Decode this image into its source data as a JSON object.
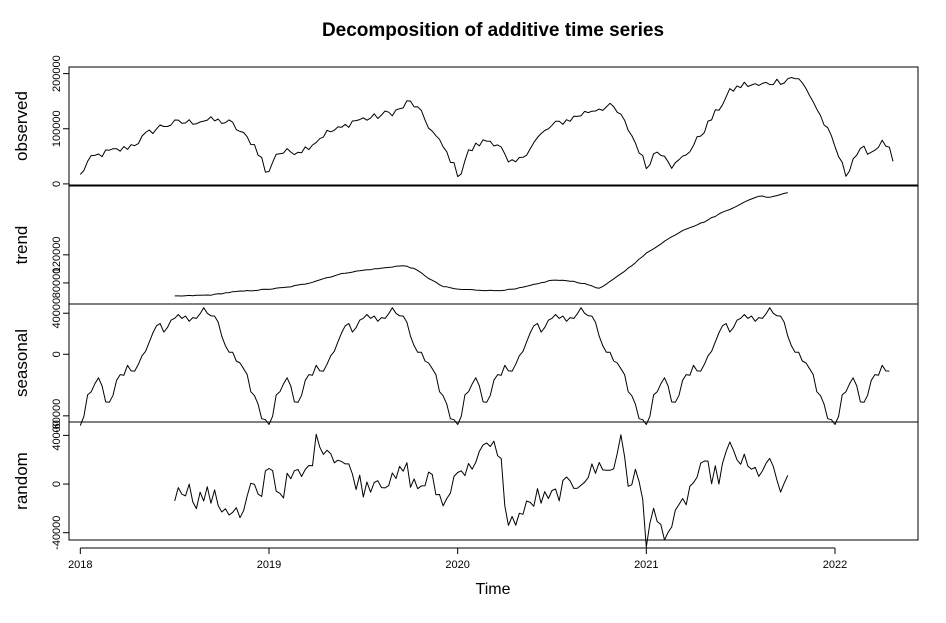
{
  "chart_data": {
    "type": "line",
    "title": "Decomposition of additive time series",
    "xlabel": "Time",
    "xlim": [
      2017.94,
      2022.44
    ],
    "x_ticks": [
      {
        "value": 2018,
        "label": "2018"
      },
      {
        "value": 2019,
        "label": "2019"
      },
      {
        "value": 2020,
        "label": "2020"
      },
      {
        "value": 2021,
        "label": "2021"
      },
      {
        "value": 2022,
        "label": "2022"
      }
    ],
    "panels": [
      {
        "ylabel": "observed",
        "ylim": [
          -2000,
          212000
        ],
        "y_ticks": [
          {
            "value": 0,
            "label": "0"
          },
          {
            "value": 100000,
            "label": "100000"
          },
          {
            "value": 200000,
            "label": "200000"
          }
        ],
        "anchors": [
          [
            2018.0,
            15000
          ],
          [
            2018.04,
            40000
          ],
          [
            2018.08,
            50000
          ],
          [
            2018.15,
            58000
          ],
          [
            2018.22,
            62000
          ],
          [
            2018.3,
            75000
          ],
          [
            2018.36,
            92000
          ],
          [
            2018.43,
            105000
          ],
          [
            2018.5,
            110000
          ],
          [
            2018.58,
            112000
          ],
          [
            2018.66,
            116000
          ],
          [
            2018.74,
            114000
          ],
          [
            2018.8,
            110000
          ],
          [
            2018.86,
            90000
          ],
          [
            2018.92,
            72000
          ],
          [
            2018.97,
            40000
          ],
          [
            2018.99,
            8000
          ],
          [
            2019.03,
            55000
          ],
          [
            2019.1,
            58000
          ],
          [
            2019.18,
            62000
          ],
          [
            2019.25,
            78000
          ],
          [
            2019.3,
            92000
          ],
          [
            2019.38,
            100000
          ],
          [
            2019.45,
            115000
          ],
          [
            2019.55,
            120000
          ],
          [
            2019.63,
            128000
          ],
          [
            2019.7,
            135000
          ],
          [
            2019.74,
            150000
          ],
          [
            2019.78,
            140000
          ],
          [
            2019.82,
            120000
          ],
          [
            2019.87,
            92000
          ],
          [
            2019.92,
            68000
          ],
          [
            2019.97,
            40000
          ],
          [
            2020.01,
            12000
          ],
          [
            2020.05,
            55000
          ],
          [
            2020.1,
            70000
          ],
          [
            2020.16,
            80000
          ],
          [
            2020.22,
            72000
          ],
          [
            2020.27,
            35000
          ],
          [
            2020.32,
            40000
          ],
          [
            2020.38,
            65000
          ],
          [
            2020.43,
            85000
          ],
          [
            2020.48,
            100000
          ],
          [
            2020.53,
            110000
          ],
          [
            2020.6,
            118000
          ],
          [
            2020.68,
            130000
          ],
          [
            2020.75,
            138000
          ],
          [
            2020.82,
            140000
          ],
          [
            2020.87,
            120000
          ],
          [
            2020.92,
            90000
          ],
          [
            2020.97,
            55000
          ],
          [
            2021.0,
            30000
          ],
          [
            2021.05,
            60000
          ],
          [
            2021.1,
            55000
          ],
          [
            2021.14,
            30000
          ],
          [
            2021.2,
            50000
          ],
          [
            2021.25,
            70000
          ],
          [
            2021.3,
            95000
          ],
          [
            2021.35,
            120000
          ],
          [
            2021.4,
            145000
          ],
          [
            2021.45,
            170000
          ],
          [
            2021.52,
            180000
          ],
          [
            2021.6,
            178000
          ],
          [
            2021.67,
            185000
          ],
          [
            2021.73,
            188000
          ],
          [
            2021.78,
            195000
          ],
          [
            2021.82,
            185000
          ],
          [
            2021.87,
            160000
          ],
          [
            2021.92,
            125000
          ],
          [
            2021.97,
            90000
          ],
          [
            2022.02,
            50000
          ],
          [
            2022.06,
            15000
          ],
          [
            2022.1,
            50000
          ],
          [
            2022.15,
            62000
          ],
          [
            2022.2,
            58000
          ],
          [
            2022.24,
            75000
          ],
          [
            2022.28,
            70000
          ],
          [
            2022.31,
            35000
          ]
        ]
      },
      {
        "ylabel": "trend",
        "ylim": [
          50000,
          218000
        ],
        "y_ticks": [
          {
            "value": 80000,
            "label": "80000"
          },
          {
            "value": 120000,
            "label": "120000"
          }
        ],
        "anchors": [
          [
            2018.5,
            61000
          ],
          [
            2018.6,
            62000
          ],
          [
            2018.7,
            63000
          ],
          [
            2018.8,
            67000
          ],
          [
            2018.9,
            69000
          ],
          [
            2019.0,
            71000
          ],
          [
            2019.1,
            74000
          ],
          [
            2019.2,
            79000
          ],
          [
            2019.3,
            87000
          ],
          [
            2019.4,
            94000
          ],
          [
            2019.5,
            98000
          ],
          [
            2019.6,
            101000
          ],
          [
            2019.68,
            104000
          ],
          [
            2019.73,
            104000
          ],
          [
            2019.78,
            99000
          ],
          [
            2019.85,
            86000
          ],
          [
            2019.92,
            75000
          ],
          [
            2020.0,
            71000
          ],
          [
            2020.1,
            70000
          ],
          [
            2020.2,
            69000
          ],
          [
            2020.3,
            71000
          ],
          [
            2020.4,
            77000
          ],
          [
            2020.5,
            84000
          ],
          [
            2020.6,
            83000
          ],
          [
            2020.7,
            77000
          ],
          [
            2020.75,
            72000
          ],
          [
            2020.8,
            80000
          ],
          [
            2020.9,
            100000
          ],
          [
            2021.0,
            122000
          ],
          [
            2021.1,
            140000
          ],
          [
            2021.2,
            156000
          ],
          [
            2021.3,
            166000
          ],
          [
            2021.4,
            180000
          ],
          [
            2021.5,
            192000
          ],
          [
            2021.55,
            199000
          ],
          [
            2021.6,
            204000
          ],
          [
            2021.65,
            202000
          ],
          [
            2021.7,
            205000
          ],
          [
            2021.76,
            210000
          ]
        ]
      },
      {
        "ylabel": "seasonal",
        "ylim": [
          -66000,
          49000
        ],
        "y_ticks": [
          {
            "value": -60000,
            "label": "-60000"
          },
          {
            "value": 0,
            "label": "0"
          },
          {
            "value": 40000,
            "label": "40000"
          }
        ],
        "anchors": [
          [
            0.0,
            -64000
          ],
          [
            0.03,
            -50000
          ],
          [
            0.06,
            -30000
          ],
          [
            0.1,
            -28000
          ],
          [
            0.14,
            -45000
          ],
          [
            0.18,
            -35000
          ],
          [
            0.22,
            -20000
          ],
          [
            0.26,
            -15000
          ],
          [
            0.3,
            -10000
          ],
          [
            0.34,
            0
          ],
          [
            0.38,
            20000
          ],
          [
            0.42,
            30000
          ],
          [
            0.46,
            25000
          ],
          [
            0.5,
            32000
          ],
          [
            0.55,
            38000
          ],
          [
            0.6,
            35000
          ],
          [
            0.65,
            42000
          ],
          [
            0.7,
            38000
          ],
          [
            0.74,
            22000
          ],
          [
            0.78,
            5000
          ],
          [
            0.82,
            -5000
          ],
          [
            0.86,
            -18000
          ],
          [
            0.9,
            -30000
          ],
          [
            0.93,
            -45000
          ],
          [
            0.96,
            -60000
          ],
          [
            0.985,
            -64000
          ]
        ]
      },
      {
        "ylabel": "random",
        "ylim": [
          -46000,
          51000
        ],
        "y_ticks": [
          {
            "value": -40000,
            "label": "-40000"
          },
          {
            "value": 0,
            "label": "0"
          },
          {
            "value": 40000,
            "label": "40000"
          }
        ],
        "anchors": [
          [
            2018.5,
            -20000
          ],
          [
            2018.52,
            2000
          ],
          [
            2018.57,
            -5000
          ],
          [
            2018.62,
            -12000
          ],
          [
            2018.68,
            -9000
          ],
          [
            2018.75,
            -18000
          ],
          [
            2018.82,
            -22000
          ],
          [
            2018.86,
            -30000
          ],
          [
            2018.9,
            -2000
          ],
          [
            2018.95,
            -15000
          ],
          [
            2019.0,
            20000
          ],
          [
            2019.05,
            -8000
          ],
          [
            2019.12,
            5000
          ],
          [
            2019.2,
            8000
          ],
          [
            2019.26,
            38000
          ],
          [
            2019.32,
            28000
          ],
          [
            2019.38,
            20000
          ],
          [
            2019.44,
            8000
          ],
          [
            2019.5,
            -2000
          ],
          [
            2019.58,
            6000
          ],
          [
            2019.66,
            0
          ],
          [
            2019.72,
            14000
          ],
          [
            2019.78,
            -4000
          ],
          [
            2019.85,
            5000
          ],
          [
            2019.9,
            -10000
          ],
          [
            2019.95,
            -15000
          ],
          [
            2020.0,
            18000
          ],
          [
            2020.05,
            8000
          ],
          [
            2020.1,
            25000
          ],
          [
            2020.16,
            28000
          ],
          [
            2020.22,
            30000
          ],
          [
            2020.27,
            -38000
          ],
          [
            2020.3,
            -28000
          ],
          [
            2020.36,
            -22000
          ],
          [
            2020.42,
            -10000
          ],
          [
            2020.48,
            -15000
          ],
          [
            2020.54,
            -5000
          ],
          [
            2020.6,
            -2000
          ],
          [
            2020.66,
            6000
          ],
          [
            2020.72,
            10000
          ],
          [
            2020.78,
            18000
          ],
          [
            2020.82,
            5000
          ],
          [
            2020.85,
            30000
          ],
          [
            2020.87,
            45000
          ],
          [
            2020.9,
            2000
          ],
          [
            2020.94,
            5000
          ],
          [
            2020.98,
            -8000
          ],
          [
            2021.0,
            -45000
          ],
          [
            2021.04,
            -25000
          ],
          [
            2021.08,
            -38000
          ],
          [
            2021.14,
            -35000
          ],
          [
            2021.2,
            -15000
          ],
          [
            2021.26,
            5000
          ],
          [
            2021.32,
            12000
          ],
          [
            2021.38,
            5000
          ],
          [
            2021.44,
            28000
          ],
          [
            2021.5,
            20000
          ],
          [
            2021.56,
            8000
          ],
          [
            2021.62,
            14000
          ],
          [
            2021.68,
            12000
          ],
          [
            2021.72,
            -10000
          ],
          [
            2021.75,
            0
          ]
        ]
      }
    ]
  }
}
